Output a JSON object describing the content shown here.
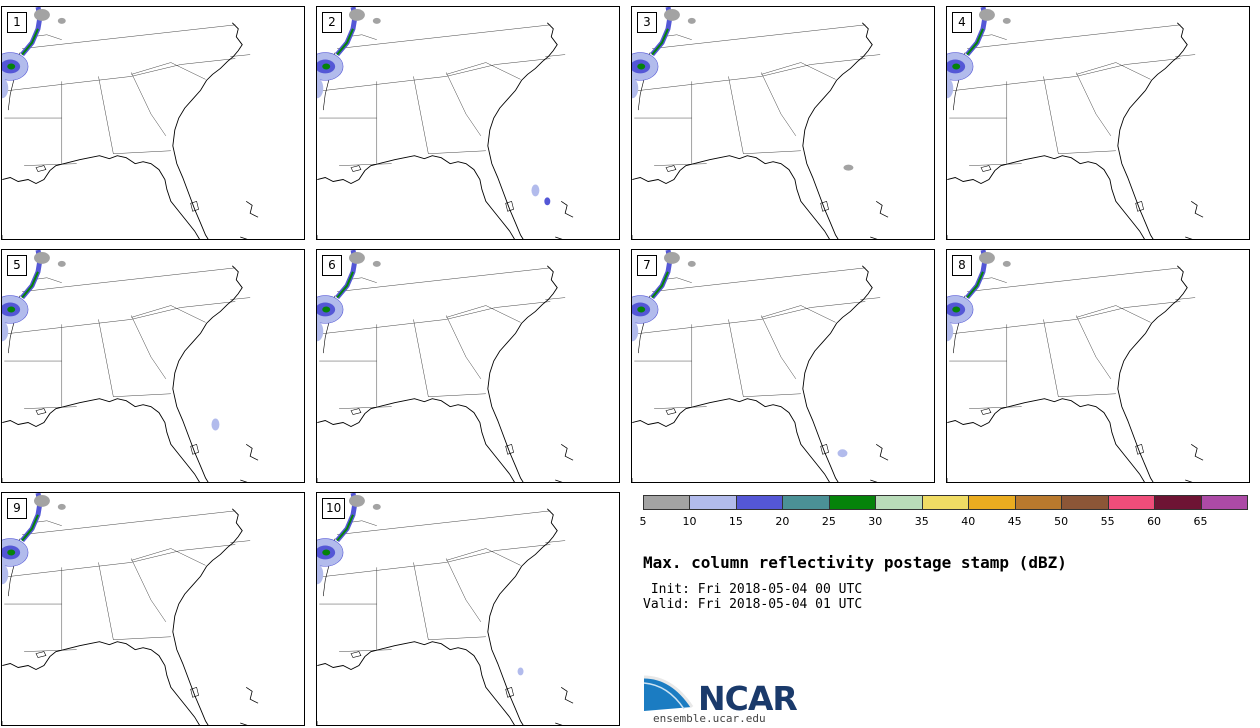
{
  "panels": [
    {
      "label": "1"
    },
    {
      "label": "2"
    },
    {
      "label": "3"
    },
    {
      "label": "4"
    },
    {
      "label": "5"
    },
    {
      "label": "6"
    },
    {
      "label": "7"
    },
    {
      "label": "8"
    },
    {
      "label": "9"
    },
    {
      "label": "10"
    }
  ],
  "colorbar": {
    "ticks": [
      "5",
      "10",
      "15",
      "20",
      "25",
      "30",
      "35",
      "40",
      "45",
      "50",
      "55",
      "60",
      "65"
    ],
    "colors": [
      "#a3a3a3",
      "#b2bbec",
      "#5457d6",
      "#4b9196",
      "#05830a",
      "#b9dcb9",
      "#f0dc64",
      "#eaac20",
      "#b9792d",
      "#8c5637",
      "#ef4d7a",
      "#6e1434",
      "#ac4aa6"
    ]
  },
  "title": "Max. column reflectivity postage stamp (dBZ)",
  "init": " Init: Fri 2018-05-04 00 UTC",
  "valid": "Valid: Fri 2018-05-04 01 UTC",
  "logo": {
    "name": "NCAR",
    "url": "ensemble.ucar.edu"
  }
}
